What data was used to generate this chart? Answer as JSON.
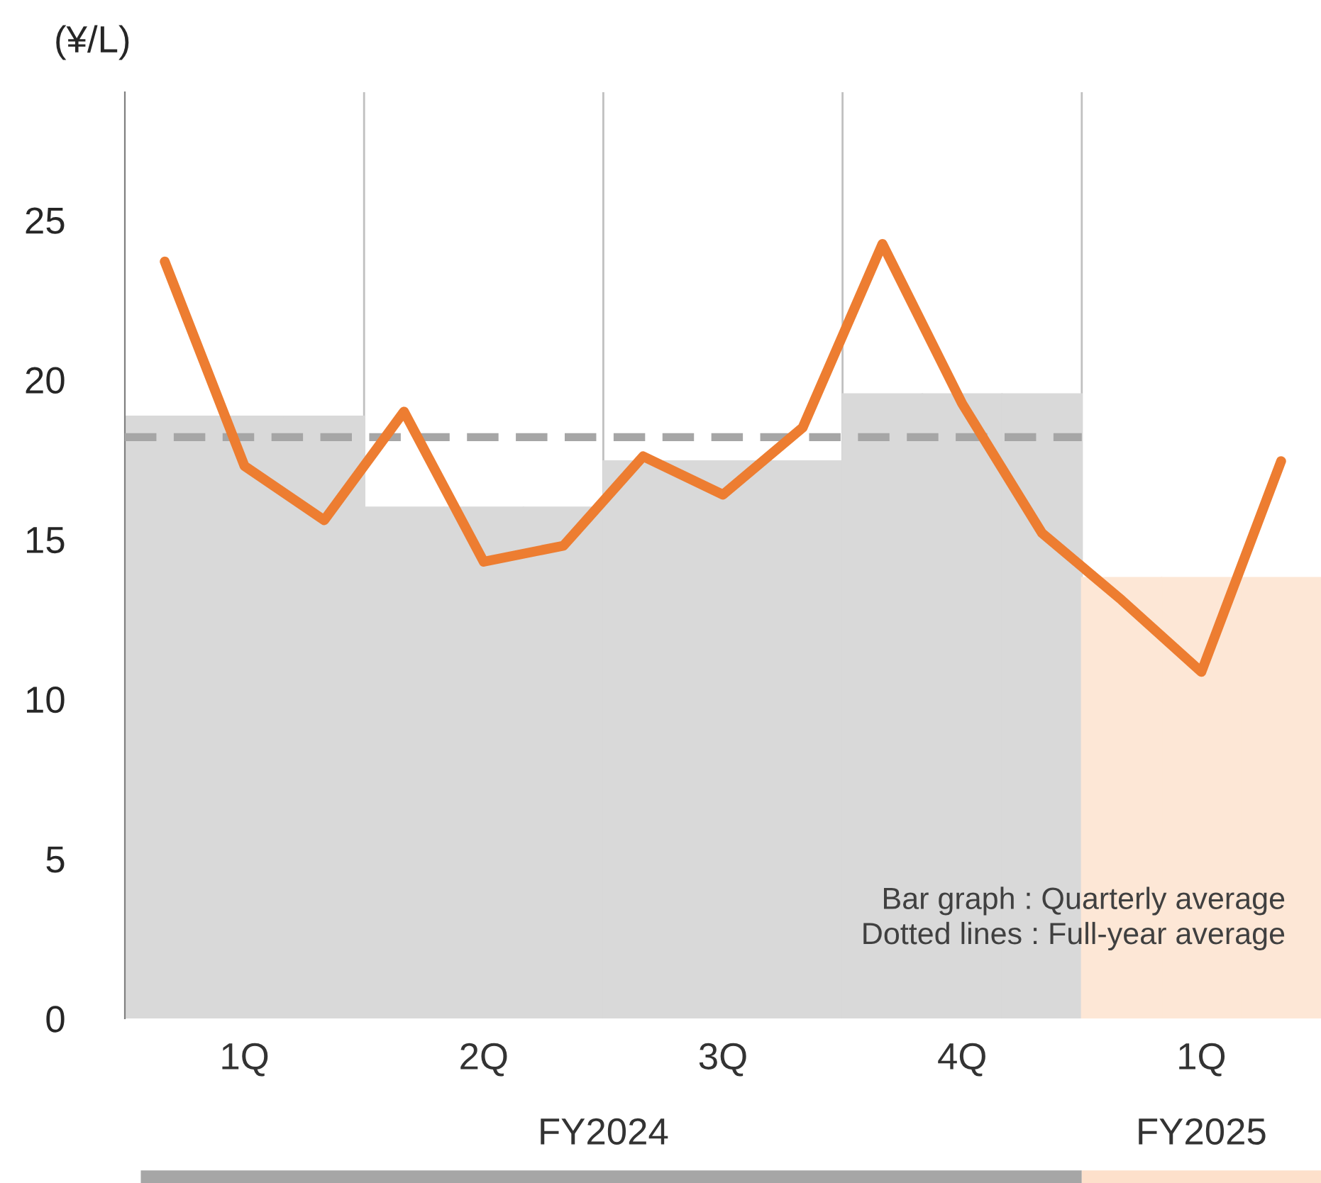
{
  "chart_data": {
    "type": "bar",
    "ylabel": "(¥/L)",
    "categories": [
      null,
      "1Q",
      null,
      null,
      "2Q",
      null,
      null,
      "3Q",
      null,
      null,
      "4Q",
      null,
      null,
      "1Q",
      null
    ],
    "series": [
      {
        "colors": [
          "#d9d9d9",
          "#d9d9d9",
          "#d9d9d9",
          "#d9d9d9",
          "#d9d9d9",
          "#d9d9d9",
          "#d9d9d9",
          "#d9d9d9",
          "#d9d9d9",
          "#d9d9d9",
          "#d9d9d9",
          "#d9d9d9",
          "#fde7d6",
          "#fde7d6",
          "#fde7d6"
        ],
        "values": [
          18.85,
          18.85,
          18.85,
          16.0,
          16.0,
          16.0,
          17.45,
          17.45,
          17.45,
          19.55,
          19.55,
          19.55,
          13.8,
          13.8,
          13.8
        ]
      },
      {
        "type": "line",
        "color": "#ed7d31",
        "values": [
          23.7,
          17.3,
          15.6,
          19.0,
          14.3,
          14.8,
          17.6,
          16.4,
          18.5,
          24.25,
          19.25,
          15.2,
          13.1,
          10.85,
          17.45
        ]
      }
    ],
    "ylim": [
      0,
      29
    ],
    "yticks": [
      0,
      5,
      10,
      15,
      20,
      25
    ],
    "ref_lines": [
      {
        "axis": "y",
        "value": 18.2,
        "color": "#a6a6a6",
        "line_style": "dashed"
      }
    ],
    "annotations": [
      "Bar graph : Quarterly average\nDotted lines : Full-year average",
      "FY2024",
      "FY2025"
    ],
    "grid": false,
    "legend": false,
    "line_style": "solid",
    "marker": "none"
  }
}
